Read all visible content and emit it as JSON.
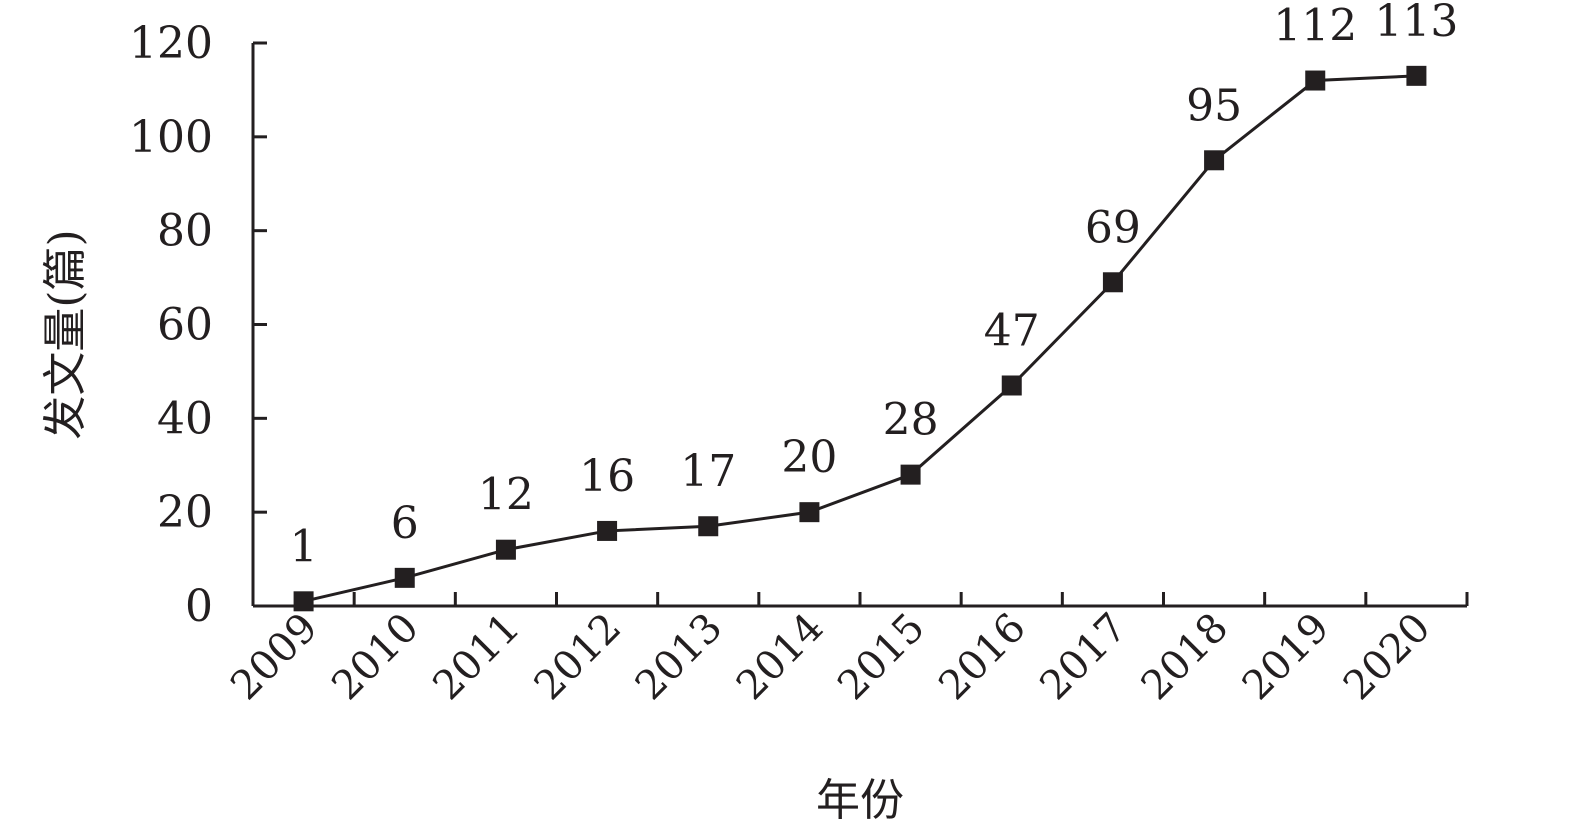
{
  "chart_data": {
    "type": "line",
    "title": "",
    "xlabel": "年份",
    "ylabel": "发文量(篇)",
    "categories": [
      "2009",
      "2010",
      "2011",
      "2012",
      "2013",
      "2014",
      "2015",
      "2016",
      "2017",
      "2018",
      "2019",
      "2020"
    ],
    "series": [
      {
        "values": [
          1,
          6,
          12,
          16,
          17,
          20,
          28,
          47,
          69,
          95,
          112,
          113
        ]
      }
    ],
    "data_labels": [
      "1",
      "6",
      "12",
      "16",
      "17",
      "20",
      "28",
      "47",
      "69",
      "95",
      "112",
      "113"
    ],
    "ylim": [
      0,
      120
    ],
    "yticks": [
      "0",
      "20",
      "40",
      "60",
      "80",
      "100",
      "120"
    ],
    "grid": false,
    "legend": "none",
    "marker": "square",
    "color": "#231f20"
  }
}
